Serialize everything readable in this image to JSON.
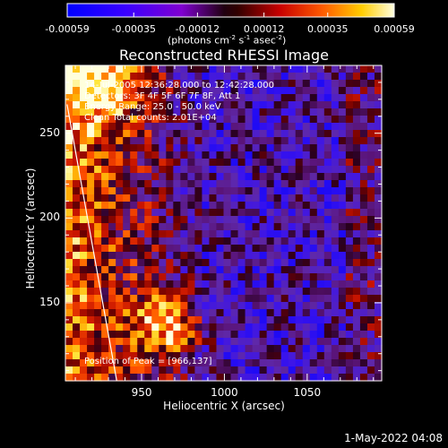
{
  "colorbar": {
    "ticks": [
      "-0.00059",
      "-0.00035",
      "-0.00012",
      "0.00012",
      "0.00035",
      "0.00059"
    ],
    "unit_prefix": "(photons cm",
    "unit_exp1": "-2",
    "unit_mid": " s",
    "unit_exp2": "-1",
    "unit_mid2": " asec",
    "unit_exp3": "-2",
    "unit_suffix": ")"
  },
  "chart_data": {
    "type": "heatmap",
    "title": "Reconstructed RHESSI Image",
    "xlabel": "Heliocentric X (arcsec)",
    "ylabel": "Heliocentric Y (arcsec)",
    "xlim": [
      904,
      1095
    ],
    "ylim": [
      104,
      290
    ],
    "xticks": [
      950,
      1000,
      1050
    ],
    "yticks": [
      150,
      200,
      250
    ],
    "colorbar_range": [
      -0.00059,
      0.00059
    ],
    "peak": [
      966,
      137
    ],
    "limb_line": [
      [
        905,
        267
      ],
      [
        935,
        104
      ]
    ],
    "annotations": [
      "14-Jul-2005 12:36:28.000 to 12:42:28.000",
      "Detectors: 3F 4F 5F 6F 7F 8F, Att 1",
      "Energy Range: 25.0 - 50.0 keV",
      "Clean     Total counts: 2.01E+04",
      "Position of Peak = [966,137]"
    ]
  },
  "timestamp": "1-May-2022 04:08"
}
